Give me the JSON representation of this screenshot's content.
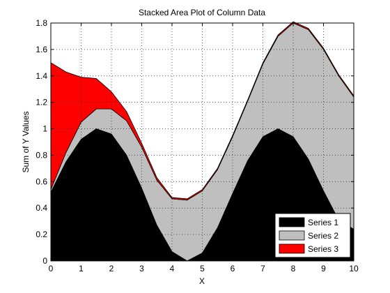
{
  "chart_data": {
    "type": "area",
    "stacked": true,
    "title": "Stacked Area Plot of Column Data",
    "xlabel": "X",
    "ylabel": "Sum of Y Values",
    "xlim": [
      0,
      10
    ],
    "ylim": [
      0,
      1.8
    ],
    "xticks": [
      "0",
      "1",
      "2",
      "3",
      "4",
      "5",
      "6",
      "7",
      "8",
      "9",
      "10"
    ],
    "yticks": [
      "0",
      "0.2",
      "0.4",
      "0.6",
      "0.8",
      "1",
      "1.2",
      "1.4",
      "1.6",
      "1.8"
    ],
    "grid": true,
    "legend_position": "bottom-right",
    "x": [
      0,
      0.5,
      1,
      1.5,
      2,
      2.5,
      3,
      3.5,
      4,
      4.5,
      5,
      5.5,
      6,
      6.5,
      7,
      7.5,
      8,
      8.5,
      9,
      9.5,
      10
    ],
    "series": [
      {
        "name": "Series 1",
        "color": "#000000",
        "values": [
          0.52,
          0.75,
          0.92,
          1.0,
          0.96,
          0.8,
          0.55,
          0.27,
          0.07,
          0.0,
          0.06,
          0.25,
          0.51,
          0.76,
          0.94,
          1.0,
          0.94,
          0.77,
          0.53,
          0.31,
          0.24
        ]
      },
      {
        "name": "Series 2",
        "color": "#bfbfbf",
        "values": [
          0.02,
          0.07,
          0.13,
          0.15,
          0.19,
          0.26,
          0.31,
          0.34,
          0.4,
          0.46,
          0.47,
          0.44,
          0.43,
          0.45,
          0.55,
          0.7,
          0.86,
          0.98,
          1.07,
          1.09,
          1.0
        ]
      },
      {
        "name": "Series 3",
        "color": "#ff0000",
        "values": [
          0.96,
          0.61,
          0.34,
          0.23,
          0.13,
          0.07,
          0.03,
          0.02,
          0.01,
          0.01,
          0.01,
          0.01,
          0.01,
          0.01,
          0.01,
          0.01,
          0.01,
          0.01,
          0.01,
          0.01,
          0.01
        ]
      }
    ]
  }
}
